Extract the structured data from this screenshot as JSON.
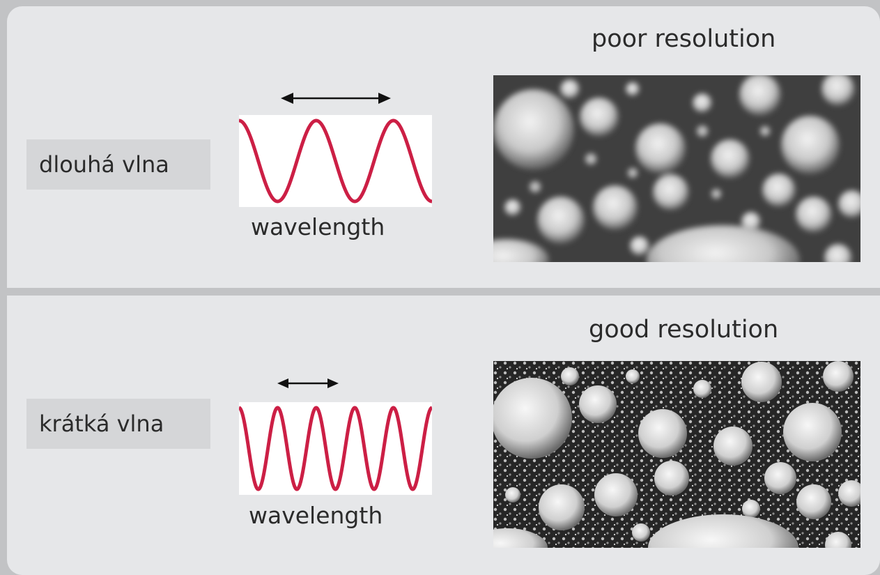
{
  "rows": [
    {
      "name": "long",
      "label": "dlouhá vlna",
      "wavelength_label": "wavelength",
      "resolution_title": "poor resolution",
      "cycles": 2.5
    },
    {
      "name": "short",
      "label": "krátká vlna",
      "wavelength_label": "wavelength",
      "resolution_title": "good resolution",
      "cycles": 5
    }
  ],
  "colors": {
    "wave": "#cc1f45",
    "arrow": "#111111",
    "panel": "#e6e7e9",
    "label_box": "#d5d6d8"
  }
}
